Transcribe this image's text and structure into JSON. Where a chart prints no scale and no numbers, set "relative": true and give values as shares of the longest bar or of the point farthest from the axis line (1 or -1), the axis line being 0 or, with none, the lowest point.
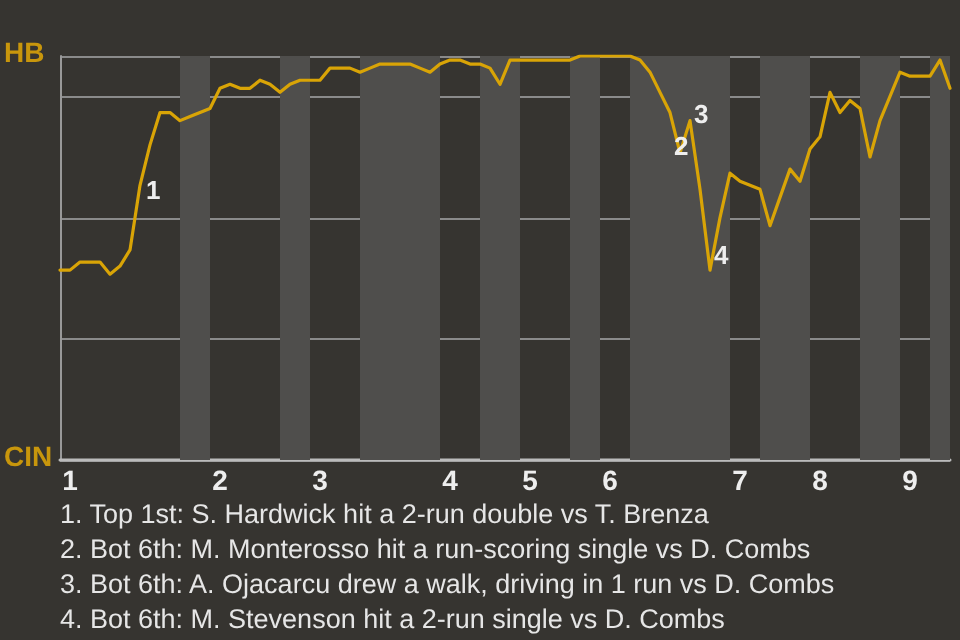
{
  "chart_data": {
    "type": "line",
    "relative": true,
    "grid": "y",
    "line_style": "solid",
    "categories": [
      null,
      "1",
      null,
      null,
      null,
      null,
      null,
      null,
      null,
      null,
      null,
      null,
      null,
      null,
      null,
      null,
      "2",
      null,
      null,
      null,
      null,
      null,
      null,
      null,
      null,
      null,
      "3",
      null,
      null,
      null,
      null,
      null,
      null,
      null,
      null,
      null,
      null,
      null,
      null,
      "4",
      null,
      null,
      null,
      null,
      null,
      null,
      null,
      "5",
      null,
      null,
      null,
      null,
      null,
      null,
      null,
      "6",
      null,
      null,
      null,
      null,
      null,
      null,
      null,
      null,
      null,
      null,
      null,
      null,
      "7",
      null,
      null,
      null,
      null,
      null,
      null,
      null,
      "8",
      null,
      null,
      null,
      null,
      null,
      null,
      null,
      null,
      "9",
      null,
      null,
      null,
      null
    ],
    "series": [
      {
        "color": "#d9a406",
        "values": [
          0.47,
          0.47,
          0.49,
          0.49,
          0.49,
          0.46,
          0.48,
          0.52,
          0.68,
          0.78,
          0.86,
          0.86,
          0.84,
          0.85,
          0.86,
          0.87,
          0.92,
          0.93,
          0.92,
          0.92,
          0.94,
          0.93,
          0.91,
          0.93,
          0.94,
          0.94,
          0.94,
          0.97,
          0.97,
          0.97,
          0.96,
          0.97,
          0.98,
          0.98,
          0.98,
          0.98,
          0.97,
          0.96,
          0.98,
          0.99,
          0.99,
          0.98,
          0.98,
          0.97,
          0.93,
          0.99,
          0.99,
          0.99,
          0.99,
          0.99,
          0.99,
          0.99,
          1,
          1,
          1,
          1,
          1,
          1,
          0.99,
          0.96,
          0.91,
          0.86,
          0.76,
          0.84,
          0.67,
          0.47,
          0.6,
          0.71,
          0.69,
          0.68,
          0.67,
          0.58,
          0.65,
          0.72,
          0.69,
          0.77,
          0.8,
          0.91,
          0.86,
          0.89,
          0.87,
          0.75,
          0.84,
          0.9,
          0.96,
          0.95,
          0.95,
          0.95,
          0.99,
          0.92
        ]
      }
    ],
    "annotations": [
      "1",
      "2",
      "3",
      "4",
      "HB",
      "CIN",
      "1. Top 1st: S. Hardwick hit a 2-run double vs T. Brenza",
      "2. Bot 6th: M. Monterosso hit a run-scoring single vs D. Combs",
      "3. Bot 6th: A. Ojacarcu drew a walk, driving in 1 run vs D. Combs",
      "4. Bot 6th: M. Stevenson hit a 2-run single vs D. Combs"
    ]
  }
}
